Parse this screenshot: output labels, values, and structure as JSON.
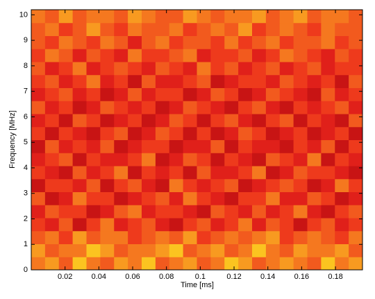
{
  "chart_data": {
    "type": "heatmap",
    "xlabel": "Time [ms]",
    "ylabel": "Frequency [MHz]",
    "xlim": [
      0,
      0.196
    ],
    "ylim": [
      0,
      10.2
    ],
    "xticks": [
      0.02,
      0.04,
      0.06,
      0.08,
      0.1,
      0.12,
      0.14,
      0.16,
      0.18
    ],
    "yticks": [
      0,
      1,
      2,
      3,
      4,
      5,
      6,
      7,
      8,
      9,
      10
    ],
    "clim": [
      0,
      9
    ],
    "colormap": [
      "#7a0000",
      "#a00a0a",
      "#c81414",
      "#e0201a",
      "#ee3a1c",
      "#f25a1e",
      "#f5781f",
      "#f89a20",
      "#fbc420",
      "#fde825"
    ],
    "z": [
      [
        6,
        7,
        5,
        8,
        6,
        5,
        7,
        6,
        8,
        5,
        6,
        7,
        5,
        6,
        8,
        7,
        5,
        6,
        7,
        6,
        5,
        8,
        6,
        7
      ],
      [
        7,
        5,
        6,
        6,
        8,
        7,
        5,
        6,
        6,
        7,
        8,
        5,
        6,
        7,
        5,
        6,
        8,
        6,
        5,
        7,
        6,
        6,
        7,
        5
      ],
      [
        5,
        6,
        4,
        7,
        5,
        6,
        6,
        4,
        5,
        6,
        5,
        7,
        4,
        5,
        6,
        5,
        6,
        7,
        4,
        5,
        6,
        5,
        4,
        6
      ],
      [
        4,
        3,
        5,
        2,
        4,
        6,
        3,
        4,
        5,
        3,
        2,
        4,
        5,
        3,
        4,
        6,
        3,
        5,
        4,
        2,
        4,
        5,
        3,
        4
      ],
      [
        3,
        5,
        4,
        4,
        2,
        3,
        5,
        6,
        3,
        4,
        4,
        3,
        2,
        5,
        4,
        3,
        5,
        3,
        4,
        6,
        3,
        2,
        4,
        5
      ],
      [
        5,
        2,
        3,
        6,
        4,
        4,
        2,
        3,
        4,
        5,
        3,
        6,
        4,
        3,
        2,
        4,
        4,
        6,
        3,
        3,
        5,
        4,
        2,
        3
      ],
      [
        2,
        4,
        4,
        3,
        5,
        2,
        4,
        5,
        3,
        2,
        6,
        4,
        3,
        4,
        5,
        2,
        3,
        4,
        5,
        4,
        2,
        3,
        6,
        4
      ],
      [
        4,
        3,
        2,
        5,
        3,
        4,
        6,
        2,
        4,
        3,
        4,
        2,
        5,
        3,
        3,
        4,
        6,
        2,
        3,
        5,
        4,
        4,
        3,
        2
      ],
      [
        3,
        4,
        5,
        2,
        4,
        3,
        3,
        4,
        6,
        2,
        3,
        5,
        4,
        2,
        4,
        3,
        2,
        5,
        4,
        3,
        6,
        2,
        4,
        3
      ],
      [
        2,
        5,
        3,
        4,
        3,
        5,
        2,
        3,
        4,
        4,
        2,
        3,
        3,
        5,
        2,
        4,
        3,
        3,
        2,
        4,
        3,
        5,
        2,
        4
      ],
      [
        4,
        2,
        4,
        3,
        2,
        4,
        5,
        2,
        3,
        5,
        4,
        2,
        4,
        2,
        3,
        5,
        4,
        2,
        3,
        4,
        2,
        3,
        4,
        2
      ],
      [
        3,
        4,
        2,
        5,
        4,
        2,
        3,
        4,
        2,
        3,
        5,
        4,
        2,
        4,
        5,
        3,
        2,
        4,
        5,
        2,
        4,
        3,
        2,
        5
      ],
      [
        5,
        3,
        4,
        2,
        3,
        5,
        4,
        3,
        4,
        2,
        3,
        5,
        4,
        3,
        2,
        4,
        5,
        3,
        2,
        4,
        3,
        4,
        5,
        3
      ],
      [
        3,
        4,
        5,
        3,
        4,
        2,
        3,
        5,
        3,
        4,
        4,
        2,
        3,
        5,
        4,
        2,
        3,
        5,
        4,
        3,
        2,
        5,
        3,
        4
      ],
      [
        4,
        5,
        3,
        4,
        6,
        3,
        4,
        2,
        5,
        3,
        3,
        4,
        5,
        2,
        3,
        4,
        4,
        3,
        5,
        4,
        3,
        4,
        2,
        5
      ],
      [
        5,
        3,
        4,
        6,
        3,
        4,
        5,
        4,
        3,
        5,
        4,
        3,
        6,
        4,
        5,
        3,
        4,
        5,
        3,
        4,
        5,
        3,
        4,
        4
      ],
      [
        4,
        6,
        5,
        3,
        5,
        4,
        3,
        6,
        4,
        4,
        5,
        6,
        3,
        4,
        4,
        5,
        3,
        4,
        6,
        5,
        4,
        3,
        5,
        4
      ],
      [
        5,
        4,
        6,
        5,
        4,
        6,
        5,
        3,
        5,
        6,
        4,
        5,
        5,
        4,
        6,
        4,
        5,
        6,
        4,
        5,
        5,
        6,
        4,
        5
      ],
      [
        5,
        6,
        4,
        5,
        7,
        5,
        4,
        6,
        5,
        5,
        6,
        4,
        5,
        6,
        5,
        7,
        4,
        5,
        6,
        5,
        4,
        6,
        5,
        5
      ],
      [
        6,
        5,
        7,
        5,
        6,
        6,
        5,
        7,
        6,
        5,
        5,
        7,
        6,
        5,
        6,
        6,
        7,
        5,
        6,
        7,
        5,
        6,
        6,
        5
      ]
    ]
  }
}
